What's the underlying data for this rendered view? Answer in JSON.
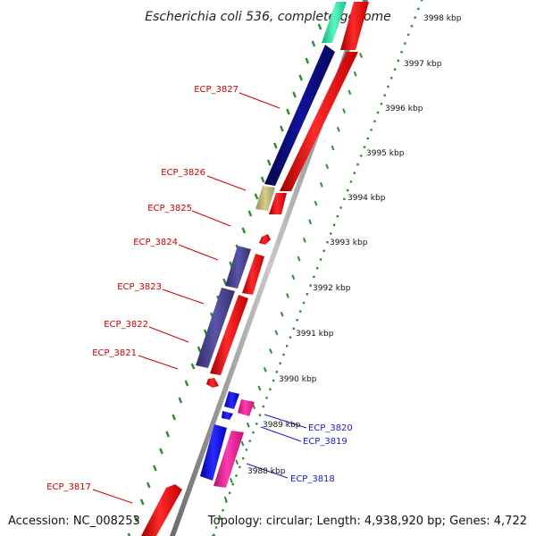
{
  "title": "Escherichia coli 536, complete genome",
  "accession": "Accession: NC_008253",
  "topology": "Topology: circular; Length: 4,938,920 bp; Genes: 4,722",
  "colors": {
    "axis": "#999999",
    "tick": "#2e8b2e",
    "label_red": "#cc0000",
    "label_blue": "#1a1acc",
    "forward": "#ff0000",
    "pink": "#ff2aa0",
    "navy": "#0a0a80",
    "slate": "#4a4490",
    "olive": "#c0b878",
    "blue": "#1010ff",
    "teal": "#33e8a8"
  },
  "kbp_ticks": [
    "3988 kbp",
    "3989 kbp",
    "3990 kbp",
    "3991 kbp",
    "3992 kbp",
    "3993 kbp",
    "3994 kbp",
    "3995 kbp",
    "3996 kbp",
    "3997 kbp",
    "3998 kbp"
  ],
  "labels_left": [
    "ECP_3827",
    "ECP_3826",
    "ECP_3825",
    "ECP_3824",
    "ECP_3823",
    "ECP_3822",
    "ECP_3821",
    "ECP_3817"
  ],
  "labels_right": [
    "ECP_3820",
    "ECP_3819",
    "ECP_3818"
  ]
}
